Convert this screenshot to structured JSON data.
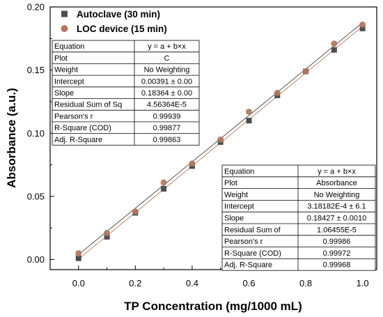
{
  "chart_data": {
    "type": "scatter",
    "title": "",
    "xlabel": "TP Concentration (mg/1000 mL)",
    "ylabel": "Absorbance (a.u.)",
    "xlim": [
      -0.1,
      1.05
    ],
    "ylim": [
      -0.008,
      0.2
    ],
    "xticks": [
      "0.0",
      "0.2",
      "0.4",
      "0.6",
      "0.8",
      "1.0"
    ],
    "xtick_values": [
      0.0,
      0.2,
      0.4,
      0.6,
      0.8,
      1.0
    ],
    "yticks": [
      "0.00",
      "0.05",
      "0.10",
      "0.15",
      "0.20"
    ],
    "ytick_values": [
      0.0,
      0.05,
      0.1,
      0.15,
      0.2
    ],
    "grid": false,
    "legend": "top-left",
    "series": [
      {
        "name": "Autoclave (30 min)",
        "marker": "square",
        "color": "#4d4d4d",
        "x": [
          0.0,
          0.1,
          0.2,
          0.3,
          0.4,
          0.5,
          0.6,
          0.7,
          0.8,
          0.9,
          1.0
        ],
        "y": [
          0.001,
          0.018,
          0.037,
          0.056,
          0.074,
          0.093,
          0.11,
          0.13,
          0.149,
          0.166,
          0.183
        ],
        "fit": {
          "a": 0.00391,
          "b": 0.18364,
          "color": "#555555"
        }
      },
      {
        "name": "LOC device (15 min)",
        "marker": "circle",
        "color": "#b5775a",
        "x": [
          0.0,
          0.1,
          0.2,
          0.3,
          0.4,
          0.5,
          0.6,
          0.7,
          0.8,
          0.9,
          1.0
        ],
        "y": [
          0.005,
          0.021,
          0.038,
          0.061,
          0.076,
          0.095,
          0.117,
          0.132,
          0.149,
          0.171,
          0.186
        ],
        "fit": {
          "a": 0.000318182,
          "b": 0.18427,
          "color": "#c0876a"
        }
      }
    ],
    "fit_tables": [
      {
        "rows": [
          [
            "Equation",
            "y = a + b×x"
          ],
          [
            "Plot",
            "C"
          ],
          [
            "Weight",
            "No Weighting"
          ],
          [
            "Intercept",
            "0.00391 ± 0.00"
          ],
          [
            "Slope",
            "0.18364 ± 0.00"
          ],
          [
            "Residual Sum of Sq",
            "4.56364E-5"
          ],
          [
            "Pearson's r",
            "0.99939"
          ],
          [
            "R-Square (COD)",
            "0.99877"
          ],
          [
            "Adj. R-Square",
            "0.99863"
          ]
        ]
      },
      {
        "rows": [
          [
            "Equation",
            "y = a + b×x"
          ],
          [
            "Plot",
            "Absorbance"
          ],
          [
            "Weight",
            "No Weighting"
          ],
          [
            "Intercept",
            "3.18182E-4 ± 6.1"
          ],
          [
            "Slope",
            "0.18427 ± 0.0010"
          ],
          [
            "Residual Sum of",
            "1.06455E-5"
          ],
          [
            "Pearson's r",
            "0.99986"
          ],
          [
            "R-Square (COD)",
            "0.99972"
          ],
          [
            "Adj. R-Square",
            "0.99968"
          ]
        ]
      }
    ]
  }
}
